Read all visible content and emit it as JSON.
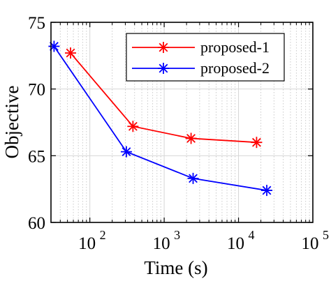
{
  "chart_data": {
    "type": "line",
    "xscale": "log",
    "xlim": [
      30,
      100000
    ],
    "ylim": [
      60,
      75
    ],
    "xlabel": "Time (s)",
    "ylabel": "Objective",
    "grid": "on (major and minor)",
    "legend_position": "top-right",
    "xtick_labels": [
      {
        "base": "10",
        "exp": "2",
        "value": 100
      },
      {
        "base": "10",
        "exp": "3",
        "value": 1000
      },
      {
        "base": "10",
        "exp": "4",
        "value": 10000
      },
      {
        "base": "10",
        "exp": "5",
        "value": 100000
      }
    ],
    "ytick_labels": [
      {
        "label": "60",
        "value": 60
      },
      {
        "label": "65",
        "value": 65
      },
      {
        "label": "70",
        "value": 70
      },
      {
        "label": "75",
        "value": 75
      }
    ],
    "series": [
      {
        "name": "proposed-1",
        "color": "#ff0000",
        "marker": "asterisk",
        "x": [
          55,
          380,
          2300,
          17500
        ],
        "y": [
          72.7,
          67.2,
          66.3,
          66.0
        ]
      },
      {
        "name": "proposed-2",
        "color": "#0000ff",
        "marker": "asterisk",
        "x": [
          33,
          310,
          2450,
          24000
        ],
        "y": [
          73.2,
          65.3,
          63.3,
          62.4
        ]
      }
    ]
  }
}
